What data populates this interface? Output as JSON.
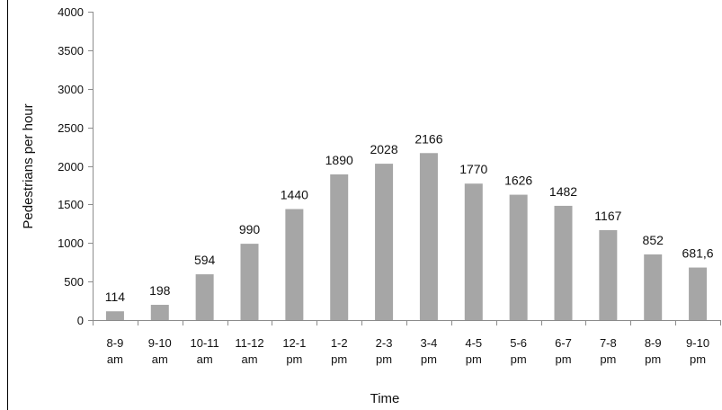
{
  "chart_data": {
    "type": "bar",
    "title": "",
    "xlabel": "Time",
    "ylabel": "Pedestrians per hour",
    "ylim": [
      0,
      4000
    ],
    "yticks": [
      0,
      500,
      1000,
      1500,
      2000,
      2500,
      3000,
      3500,
      4000
    ],
    "grid": false,
    "legend": "none",
    "bar_color": "#a6a6a6",
    "categories": [
      {
        "line1": "8-9",
        "line2": "am"
      },
      {
        "line1": "9-10",
        "line2": "am"
      },
      {
        "line1": "10-11",
        "line2": "am"
      },
      {
        "line1": "11-12",
        "line2": "am"
      },
      {
        "line1": "12-1",
        "line2": "pm"
      },
      {
        "line1": "1-2",
        "line2": "pm"
      },
      {
        "line1": "2-3",
        "line2": "pm"
      },
      {
        "line1": "3-4",
        "line2": "pm"
      },
      {
        "line1": "4-5",
        "line2": "pm"
      },
      {
        "line1": "5-6",
        "line2": "pm"
      },
      {
        "line1": "6-7",
        "line2": "pm"
      },
      {
        "line1": "7-8",
        "line2": "pm"
      },
      {
        "line1": "8-9",
        "line2": "pm"
      },
      {
        "line1": "9-10",
        "line2": "pm"
      }
    ],
    "values": [
      114,
      198,
      594,
      990,
      1440,
      1890,
      2028,
      2166,
      1770,
      1626,
      1482,
      1167,
      852,
      681.6
    ],
    "value_labels": [
      "114",
      "198",
      "594",
      "990",
      "1440",
      "1890",
      "2028",
      "2166",
      "1770",
      "1626",
      "1482",
      "1167",
      "852",
      "681,6"
    ]
  }
}
